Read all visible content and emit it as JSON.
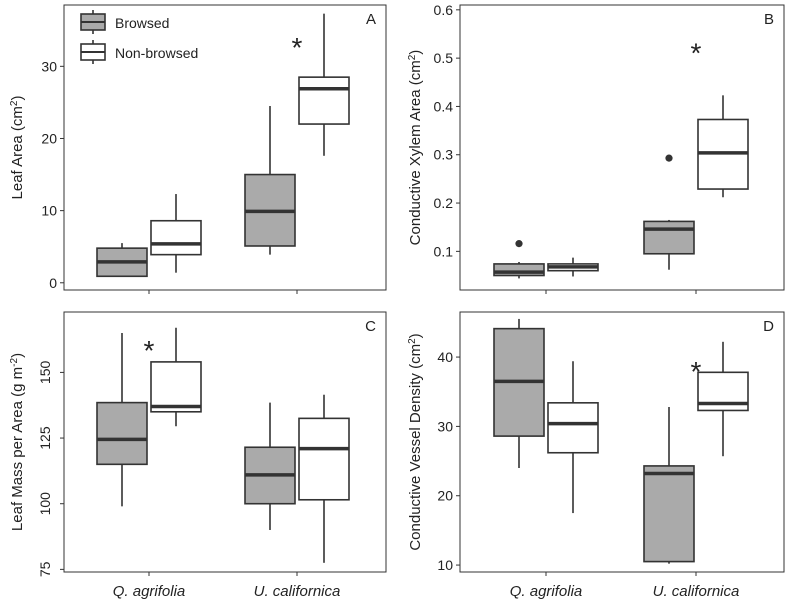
{
  "colors": {
    "browsed": "#aaaaaa",
    "nonbrowsed": "#ffffff",
    "stroke": "#333333",
    "frame": "#333333"
  },
  "legend": {
    "items": [
      {
        "label": "Browsed",
        "fill": "#aaaaaa"
      },
      {
        "label": "Non-browsed",
        "fill": "#ffffff"
      }
    ]
  },
  "x_categories": [
    "Q. agrifolia",
    "U. californica"
  ],
  "chart_data": [
    {
      "type": "box",
      "panel_letter": "A",
      "ylabel_main": "Leaf Area (cm",
      "ylabel_sup": "2",
      "ylabel_tail": ")",
      "ylim": [
        -1,
        38.5
      ],
      "yticks": [
        0,
        10,
        20,
        30
      ],
      "categories": [
        "Q. agrifolia",
        "U. californica"
      ],
      "series": [
        {
          "name": "Browsed",
          "boxes": [
            {
              "category": "Q. agrifolia",
              "min": 0.8,
              "q1": 0.9,
              "median": 2.9,
              "q3": 4.8,
              "max": 5.5,
              "outliers": []
            },
            {
              "category": "U. californica",
              "min": 3.9,
              "q1": 5.1,
              "median": 9.9,
              "q3": 15.0,
              "max": 24.5,
              "outliers": []
            }
          ]
        },
        {
          "name": "Non-browsed",
          "boxes": [
            {
              "category": "Q. agrifolia",
              "min": 1.4,
              "q1": 3.9,
              "median": 5.4,
              "q3": 8.6,
              "max": 12.3,
              "outliers": []
            },
            {
              "category": "U. californica",
              "min": 17.6,
              "q1": 22.0,
              "median": 26.9,
              "q3": 28.5,
              "max": 37.3,
              "outliers": []
            }
          ]
        }
      ],
      "annotations": [
        {
          "text": "*",
          "category": "U. californica",
          "y": 33.2
        }
      ]
    },
    {
      "type": "box",
      "panel_letter": "B",
      "ylabel_main": "Conductive Xylem Area  (cm",
      "ylabel_sup": "2",
      "ylabel_tail": ")",
      "ylim": [
        0.02,
        0.61
      ],
      "yticks": [
        0.1,
        0.2,
        0.3,
        0.4,
        0.5,
        0.6
      ],
      "categories": [
        "Q. agrifolia",
        "U. californica"
      ],
      "series": [
        {
          "name": "Browsed",
          "boxes": [
            {
              "category": "Q. agrifolia",
              "min": 0.044,
              "q1": 0.05,
              "median": 0.057,
              "q3": 0.074,
              "max": 0.078,
              "outliers": [
                0.116
              ]
            },
            {
              "category": "U. californica",
              "min": 0.062,
              "q1": 0.095,
              "median": 0.146,
              "q3": 0.162,
              "max": 0.165,
              "outliers": [
                0.293
              ]
            }
          ]
        },
        {
          "name": "Non-browsed",
          "boxes": [
            {
              "category": "Q. agrifolia",
              "min": 0.048,
              "q1": 0.06,
              "median": 0.068,
              "q3": 0.074,
              "max": 0.087,
              "outliers": []
            },
            {
              "category": "U. californica",
              "min": 0.212,
              "q1": 0.229,
              "median": 0.304,
              "q3": 0.373,
              "max": 0.423,
              "outliers": []
            }
          ]
        }
      ],
      "annotations": [
        {
          "text": "*",
          "category": "U. californica",
          "y": 0.52
        }
      ]
    },
    {
      "type": "box",
      "panel_letter": "C",
      "ylabel_main": "Leaf Mass per Area (g m",
      "ylabel_sup": "-2",
      "ylabel_tail": ")",
      "ylim": [
        74,
        173
      ],
      "yticks": [
        75,
        100,
        125,
        150
      ],
      "categories": [
        "Q. agrifolia",
        "U. californica"
      ],
      "series": [
        {
          "name": "Browsed",
          "boxes": [
            {
              "category": "Q. agrifolia",
              "min": 99,
              "q1": 115,
              "median": 124.5,
              "q3": 138.5,
              "max": 165,
              "outliers": []
            },
            {
              "category": "U. californica",
              "min": 90,
              "q1": 100,
              "median": 111,
              "q3": 121.5,
              "max": 138.5,
              "outliers": []
            }
          ]
        },
        {
          "name": "Non-browsed",
          "boxes": [
            {
              "category": "Q. agrifolia",
              "min": 129.5,
              "q1": 135,
              "median": 137,
              "q3": 154,
              "max": 167,
              "outliers": []
            },
            {
              "category": "U. californica",
              "min": 77.5,
              "q1": 101.5,
              "median": 121,
              "q3": 132.5,
              "max": 141.5,
              "outliers": []
            }
          ]
        }
      ],
      "annotations": [
        {
          "text": "*",
          "category": "Q. agrifolia",
          "y": 160
        }
      ]
    },
    {
      "type": "box",
      "panel_letter": "D",
      "ylabel_main": "Conductive Vessel Density  (cm",
      "ylabel_sup": "2",
      "ylabel_tail": ")",
      "ylim": [
        9,
        46.5
      ],
      "yticks": [
        10,
        20,
        30,
        40
      ],
      "categories": [
        "Q. agrifolia",
        "U. californica"
      ],
      "series": [
        {
          "name": "Browsed",
          "boxes": [
            {
              "category": "Q. agrifolia",
              "min": 24,
              "q1": 28.6,
              "median": 36.5,
              "q3": 44.1,
              "max": 45.5,
              "outliers": []
            },
            {
              "category": "U. californica",
              "min": 10.2,
              "q1": 10.5,
              "median": 23.2,
              "q3": 24.3,
              "max": 32.8,
              "outliers": []
            }
          ]
        },
        {
          "name": "Non-browsed",
          "boxes": [
            {
              "category": "Q. agrifolia",
              "min": 17.5,
              "q1": 26.2,
              "median": 30.4,
              "q3": 33.4,
              "max": 39.4,
              "outliers": []
            },
            {
              "category": "U. californica",
              "min": 25.7,
              "q1": 32.3,
              "median": 33.3,
              "q3": 37.8,
              "max": 42.2,
              "outliers": []
            }
          ]
        }
      ],
      "annotations": [
        {
          "text": "*",
          "category": "U. californica",
          "y": 38.6
        }
      ]
    }
  ]
}
